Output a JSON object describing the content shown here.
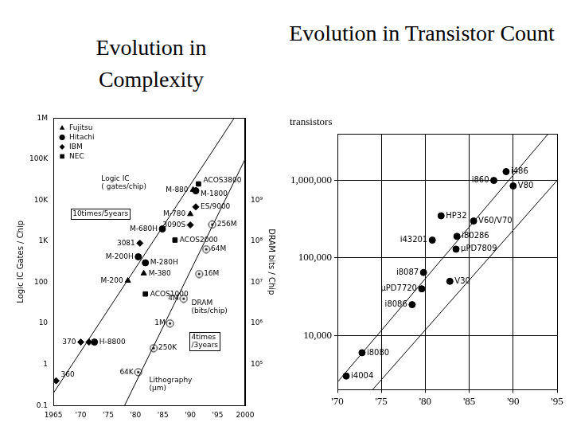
{
  "chart_data": [
    {
      "type": "scatter",
      "title": "Evolution in Complexity",
      "y_label": "Logic IC Gates / Chip",
      "y2_label": "DRAM bits / Chip",
      "log": "y",
      "grid": false,
      "legend": "upper left",
      "xlim": [
        1965,
        2000
      ],
      "xticks": [
        1965,
        {
          "value": 1970,
          "label": "'70"
        },
        {
          "value": 1975,
          "label": "'75"
        },
        {
          "value": 1980,
          "label": "'80"
        },
        {
          "value": 1985,
          "label": "'85"
        },
        {
          "value": 1990,
          "label": "'90"
        },
        {
          "value": 1995,
          "label": "'95"
        },
        2000
      ],
      "ylim": [
        0.1,
        1000000
      ],
      "yticks": [
        0.1,
        1,
        10,
        100,
        {
          "value": 1000,
          "label": "1K"
        },
        {
          "value": 10000,
          "label": "10K"
        },
        {
          "value": 100000,
          "label": "100K"
        },
        {
          "value": 1000000,
          "label": "1M"
        }
      ],
      "y2lim": [
        10000,
        100000000000
      ],
      "y2ticks": [
        {
          "value": 100000,
          "label": "10⁵"
        },
        {
          "value": 1000000,
          "label": "10⁶"
        },
        {
          "value": 10000000,
          "label": "10⁷"
        },
        {
          "value": 100000000,
          "label": "10⁸"
        },
        {
          "value": 1000000000,
          "label": "10⁹"
        }
      ],
      "series": [
        {
          "name": "Fujitsu",
          "color": "#000000",
          "marker": "triangle",
          "x": [
            1978.6,
            1981.5,
            1990,
            1990.5
          ],
          "values": [
            110,
            165,
            4600,
            18000
          ],
          "labels": [
            "M-200",
            "M-380",
            "M-780",
            "M-880"
          ]
        },
        {
          "name": "Hitachi",
          "color": "#000000",
          "marker": "circle",
          "x": [
            1972.5,
            1980.5,
            1981.8,
            1984.9,
            1991
          ],
          "values": [
            3.5,
            420,
            300,
            2000,
            17000
          ],
          "labels": [
            "H-8800",
            "M-200H",
            "M-280H",
            "M-680H",
            "M-1800"
          ]
        },
        {
          "name": "IBM",
          "color": "#000000",
          "marker": "diamond",
          "x": [
            1965.5,
            1970,
            1971.5,
            1980.8,
            1990,
            1991
          ],
          "values": [
            0.4,
            3.5,
            3.5,
            900,
            2500,
            6900
          ],
          "labels": [
            "360",
            "370",
            null,
            "3081",
            "3090S",
            "ES/9000"
          ]
        },
        {
          "name": "NEC",
          "color": "#000000",
          "marker": "square",
          "x": [
            1981.8,
            1987.2,
            1991.5
          ],
          "values": [
            52,
            1070,
            25000
          ],
          "labels": [
            "ACOS1000",
            "ACOS2000",
            "ACOS3800"
          ]
        },
        {
          "color": "#000000",
          "marker": "circled_dot",
          "axis": "y2",
          "x": [
            1980.5,
            1983.3,
            1986.3,
            1988.8,
            1991.6,
            1992.9,
            1994
          ],
          "values": [
            65000,
            250000,
            1000000,
            4000000,
            16000000,
            64000000,
            256000000
          ],
          "labels": [
            "64K",
            "250K",
            "1M",
            "4M",
            "16M",
            "64M",
            "256M"
          ]
        },
        {
          "type": "line",
          "line_style": "solid",
          "color": "#000000",
          "x": [
            1965,
            1998
          ],
          "values": [
            0.2,
            1000000
          ]
        },
        {
          "type": "line",
          "line_style": "solid",
          "color": "#000000",
          "axis": "y2",
          "x": [
            1978,
            2000
          ],
          "values": [
            10000,
            10000000000
          ]
        }
      ],
      "annotations": [
        [
          "Logic IC",
          "( gates/chip)"
        ],
        [
          "10times/5years"
        ],
        [
          "DRAM",
          "(bits/chip)"
        ],
        [
          "4times",
          "/3years"
        ],
        [
          "Lithography",
          "(μm)"
        ]
      ]
    },
    {
      "type": "scatter",
      "title": "Evolution in Transistor Count",
      "y_label": "transistors",
      "log": "y",
      "grid": true,
      "xlim": [
        1970,
        1995
      ],
      "xticks": [
        {
          "value": 1970,
          "label": "'70"
        },
        {
          "value": 1975,
          "label": "'75"
        },
        {
          "value": 1980,
          "label": "'80"
        },
        {
          "value": 1985,
          "label": "'85"
        },
        {
          "value": 1990,
          "label": "'90"
        },
        {
          "value": 1995,
          "label": "'95"
        }
      ],
      "ylim": [
        2000,
        4000000
      ],
      "yticks": [
        {
          "value": 10000,
          "label": "10,000"
        },
        {
          "value": 100000,
          "label": "100,000"
        },
        {
          "value": 1000000,
          "label": "1,000,000"
        }
      ],
      "series": [
        {
          "color": "#000000",
          "marker": "circle",
          "x": [
            1971,
            1972.8,
            1978.5,
            1979.6,
            1979.8,
            1982.8,
            1980.8,
            1983.5,
            1983.6,
            1981.8,
            1985.5,
            1987.8,
            1989.2,
            1990
          ],
          "values": [
            3000,
            6000,
            25000,
            40000,
            65000,
            50000,
            170000,
            130000,
            190000,
            350000,
            300000,
            1000000,
            1300000,
            850000
          ],
          "labels": [
            "i4004",
            "i8080",
            "i8086",
            "μPD7720",
            "i8087",
            "V30",
            "i43201",
            "μPD7809",
            "i80286",
            "HP32",
            "V60/V70",
            "i860",
            "i486",
            "V80"
          ]
        },
        {
          "type": "line",
          "line_style": "solid",
          "color": "#000000",
          "x": [
            1970,
            1994
          ],
          "values": [
            2500,
            4000000
          ]
        },
        {
          "type": "line",
          "line_style": "solid",
          "color": "#000000",
          "x": [
            1974,
            1995
          ],
          "values": [
            2000,
            1000000
          ]
        }
      ]
    }
  ]
}
